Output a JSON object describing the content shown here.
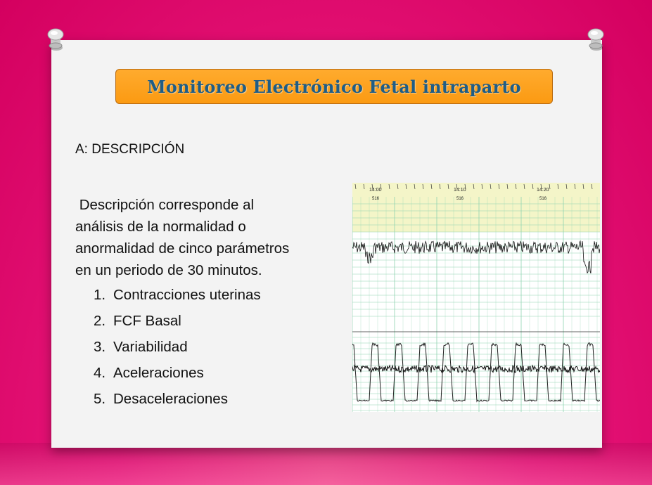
{
  "title": "Monitoreo Electrónico Fetal intraparto",
  "section_heading": "A: DESCRIPCIÓN",
  "description": " Descripción corresponde al análisis de la normalidad o anormalidad de cinco parámetros en un periodo de 30 minutos.",
  "description_lines": [
    " Descripción corresponde al",
    "análisis de la normalidad o",
    "anormalidad de cinco parámetros",
    "en un periodo de 30 minutos."
  ],
  "parameters": [
    {
      "num": "1.",
      "label": "Contracciones uterinas"
    },
    {
      "num": "2.",
      "label": "FCF Basal"
    },
    {
      "num": "3.",
      "label": "Variabilidad"
    },
    {
      "num": "4.",
      "label": "Aceleraciones"
    },
    {
      "num": "5.",
      "label": "Desaceleraciones"
    }
  ],
  "ctg_image": {
    "time_labels": [
      "14:00",
      "14:10",
      "14:20"
    ],
    "paper_code_labels": [
      "516",
      "516",
      "516"
    ],
    "colors": {
      "header_band": "#f4f5c8",
      "grid": "#8fd3b0",
      "trace": "#111111"
    }
  },
  "colors": {
    "background": "#e8167a",
    "title_box": "#fb9a12",
    "title_text": "#1f5d86",
    "paper": "#f3f3f3"
  }
}
